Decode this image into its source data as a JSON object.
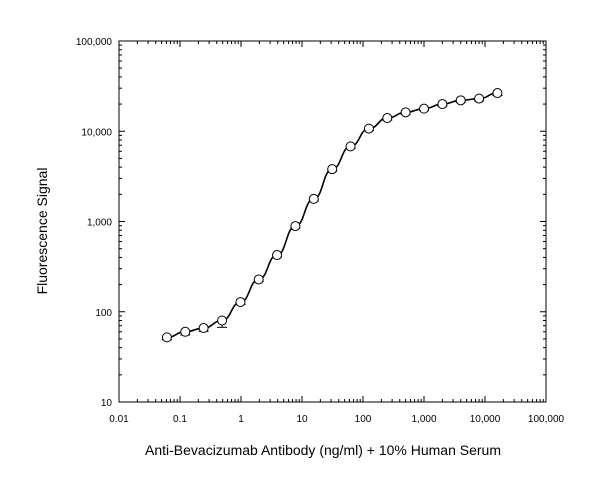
{
  "chart_data": {
    "type": "scatter",
    "title": "",
    "xlabel": "Anti-Bevacizumab Antibody  (ng/ml) + 10% Human Serum",
    "ylabel": "Fluorescence Signal",
    "x_scale": "log",
    "y_scale": "log",
    "xlim": [
      0.01,
      100000
    ],
    "ylim": [
      10,
      100000
    ],
    "x_tick_values": [
      0.01,
      0.1,
      1,
      10,
      100,
      1000,
      10000,
      100000
    ],
    "x_tick_labels": [
      "0.01",
      "0.1",
      "1",
      "10",
      "100",
      "1,000",
      "10,000",
      "100,000"
    ],
    "y_tick_values": [
      10,
      100,
      1000,
      10000,
      100000
    ],
    "y_tick_labels": [
      "10",
      "100",
      "1,000",
      "10,000",
      "100,000"
    ],
    "grid": false,
    "legend": "none",
    "series": [
      {
        "marker": "open-circle",
        "error_bars": true,
        "fit_line": true,
        "points": [
          {
            "x": 0.061,
            "y": 52
          },
          {
            "x": 0.122,
            "y": 60
          },
          {
            "x": 0.244,
            "y": 66
          },
          {
            "x": 0.49,
            "y": 80
          },
          {
            "x": 0.98,
            "y": 128
          },
          {
            "x": 1.95,
            "y": 228
          },
          {
            "x": 3.9,
            "y": 425
          },
          {
            "x": 7.8,
            "y": 890
          },
          {
            "x": 15.6,
            "y": 1780
          },
          {
            "x": 31.25,
            "y": 3800
          },
          {
            "x": 62.5,
            "y": 6800
          },
          {
            "x": 125,
            "y": 10700
          },
          {
            "x": 250,
            "y": 14000
          },
          {
            "x": 500,
            "y": 16200
          },
          {
            "x": 1000,
            "y": 17800
          },
          {
            "x": 2000,
            "y": 20000
          },
          {
            "x": 4000,
            "y": 22000
          },
          {
            "x": 8000,
            "y": 23000
          },
          {
            "x": 16000,
            "y": 26500
          }
        ],
        "error_low_frac": [
          0.06,
          0.08,
          0.08,
          0.16,
          0.06,
          0.05,
          0.05,
          0.05,
          0.05,
          0.05,
          0.05,
          0.05,
          0.05,
          0.05,
          0.05,
          0.05,
          0.05,
          0.06,
          0.06
        ]
      }
    ]
  }
}
